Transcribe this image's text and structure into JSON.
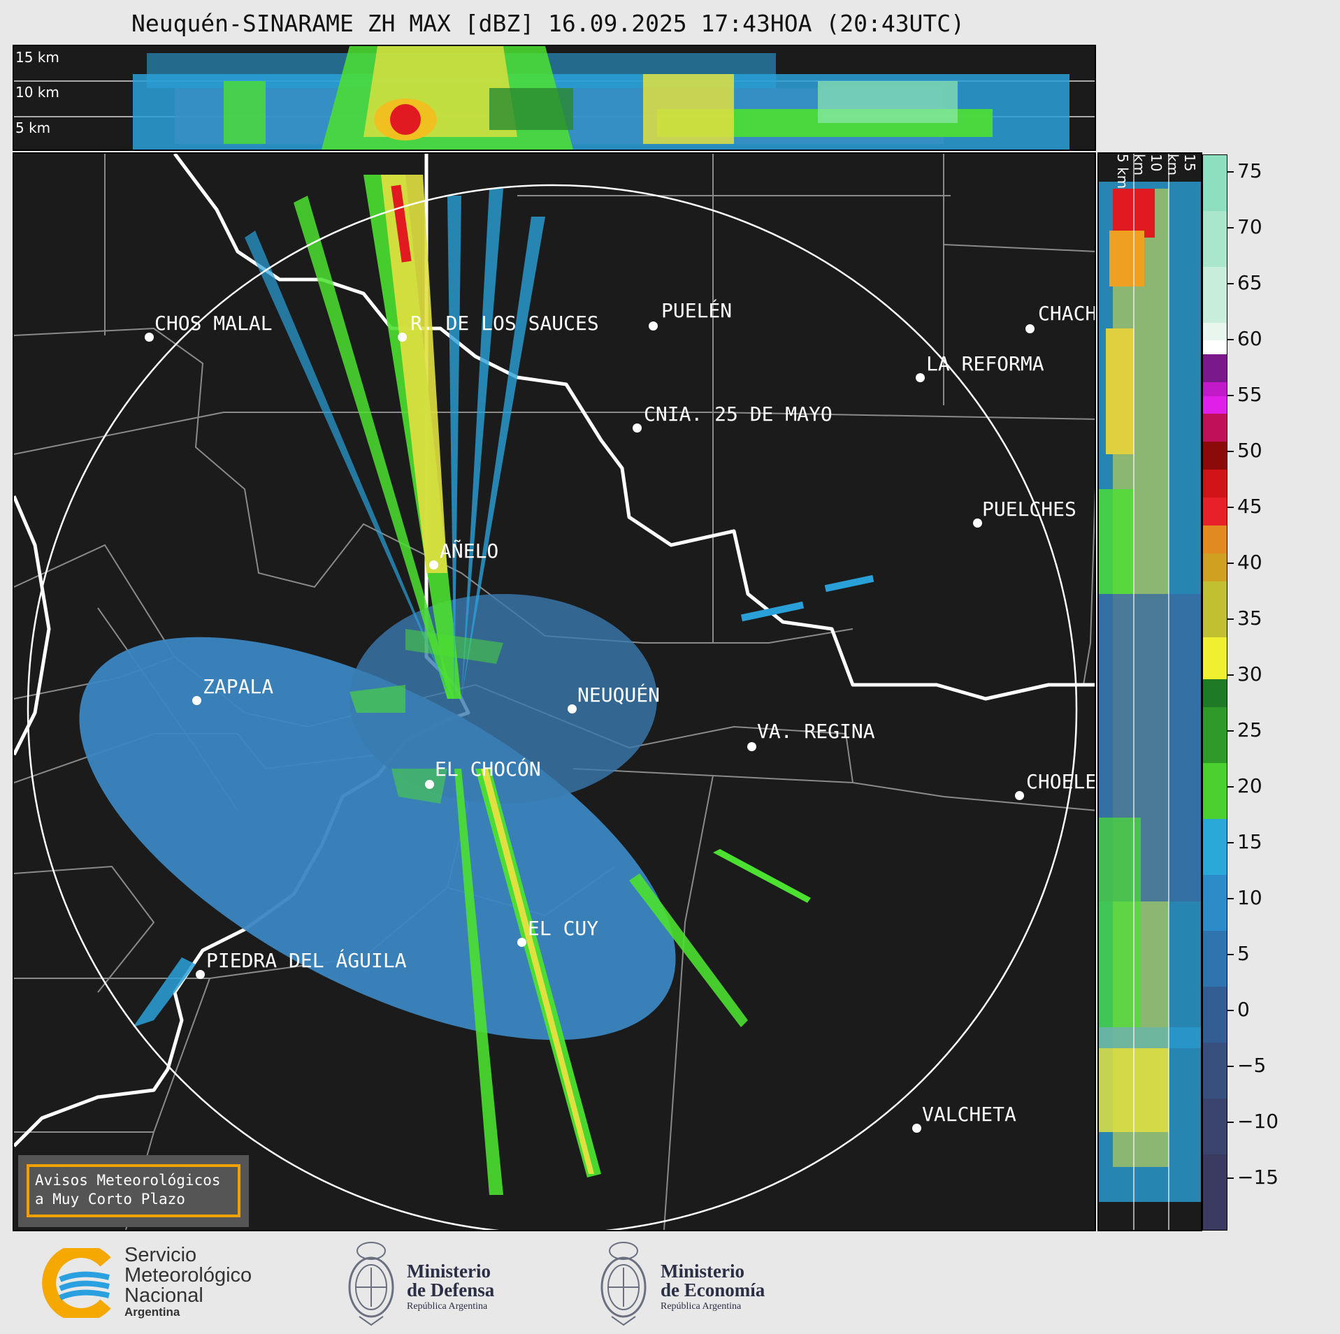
{
  "title": "Neuquén-SINARAME ZH MAX [dBZ] 16.09.2025 17:43HOA (20:43UTC)",
  "top_panel": {
    "altitude_labels": [
      "15 km",
      "10 km",
      "5 km"
    ]
  },
  "side_panel": {
    "altitude_labels": [
      "5 km",
      "10 km",
      "15 km"
    ]
  },
  "cities": [
    {
      "name": "CHOS MALAL"
    },
    {
      "name": "R. DE LOS SAUCES"
    },
    {
      "name": "PUELÉN"
    },
    {
      "name": "CHACH"
    },
    {
      "name": "LA REFORMA"
    },
    {
      "name": "CNIA. 25 DE MAYO"
    },
    {
      "name": "PUELCHES"
    },
    {
      "name": "AÑELO"
    },
    {
      "name": "ZAPALA"
    },
    {
      "name": "NEUQUÉN"
    },
    {
      "name": "VA. REGINA"
    },
    {
      "name": "EL CHOCÓN"
    },
    {
      "name": "CHOELE"
    },
    {
      "name": "EL CUY"
    },
    {
      "name": "PIEDRA DEL ÁGUILA"
    },
    {
      "name": "VALCHETA"
    }
  ],
  "colorbar": {
    "unit": "dBZ",
    "ticks": [
      "75",
      "70",
      "65",
      "60",
      "55",
      "50",
      "45",
      "40",
      "35",
      "30",
      "25",
      "20",
      "15",
      "10",
      "5",
      "0",
      "−5",
      "−10",
      "−15"
    ],
    "range": [
      -20,
      77
    ]
  },
  "warning": {
    "line1": "Avisos Meteorológicos",
    "line2": "a Muy Corto Plazo"
  },
  "logos": {
    "smn": {
      "line1": "Servicio",
      "line2": "Meteorológico",
      "line3": "Nacional",
      "line4": "Argentina"
    },
    "defensa": {
      "line1": "Ministerio",
      "line2": "de Defensa",
      "line3": "República Argentina"
    },
    "economia": {
      "line1": "Ministerio",
      "line2": "de Economía",
      "line3": "República Argentina"
    }
  }
}
